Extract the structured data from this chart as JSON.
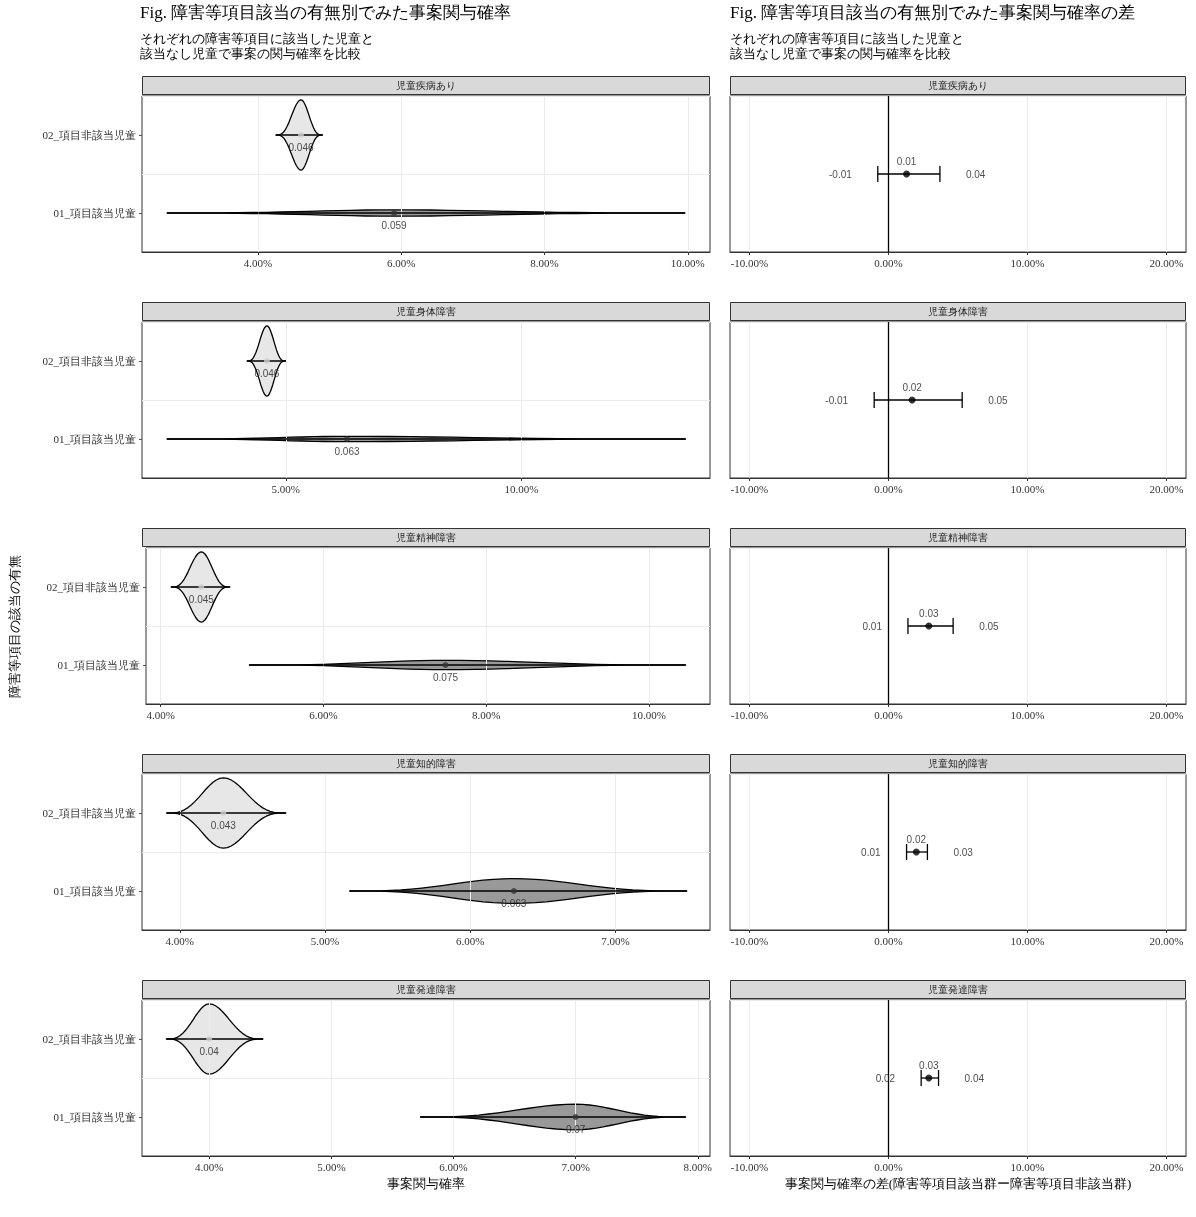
{
  "chart_data": [
    {
      "type": "scatter",
      "orientation": "horizontal",
      "title": "児童疾病あり",
      "categories": [
        "02_項目非該当児童",
        "01_項目該当児童"
      ],
      "colors": [
        "#cfcfcf",
        "#333333"
      ],
      "values": [
        0.046,
        0.059
      ],
      "errors": [
        [
          0.0425,
          0.049
        ],
        [
          0.0273,
          0.0996
        ]
      ],
      "value_labels": [
        "0.046",
        "0.059"
      ],
      "xlim": [
        0.0238,
        0.1031
      ],
      "xticks": [
        {
          "value": 0.04,
          "label": "4.00%"
        },
        {
          "value": 0.06,
          "label": "6.00%"
        },
        {
          "value": 0.08,
          "label": "8.00%"
        },
        {
          "value": 0.1,
          "label": "10.00%"
        }
      ],
      "grid": true,
      "annotations": [
        "Fig. 障害等項目該当の有無別でみた事案関与確率",
        "それぞれの障害等項目に該当した児童と",
        "該当なし児童で事案の関与確率を比較"
      ]
    },
    {
      "type": "scatter",
      "orientation": "horizontal",
      "title": "児童疾病あり",
      "categories": [
        null
      ],
      "values": [
        0.013
      ],
      "colors": [
        "#000000"
      ],
      "errors": [
        [
          -0.0077,
          0.037
        ]
      ],
      "value_labels": [
        "0.01"
      ],
      "xlim": [
        -0.114,
        0.214
      ],
      "xticks": [
        {
          "value": -0.1,
          "label": "-10.00%"
        },
        {
          "value": 0,
          "label": "0.00%"
        },
        {
          "value": 0.1,
          "label": "10.00%"
        },
        {
          "value": 0.2,
          "label": "20.00%"
        }
      ],
      "grid": true,
      "tick_labels": "x",
      "ref_lines": [
        {
          "axis": "x",
          "value": 0,
          "color": "#000000"
        }
      ],
      "annotations": [
        "Fig. 障害等項目該当の有無別でみた事案関与確率の差",
        "それぞれの障害等項目に該当した児童と",
        "該当なし児童で事案の関与確率を比較",
        {
          "text": "-0.01",
          "x": -0.0077
        },
        {
          "text": "0.04",
          "x": 0.037
        }
      ]
    },
    {
      "type": "scatter",
      "orientation": "horizontal",
      "title": "児童身体障害",
      "categories": [
        "02_項目非該当児童",
        "01_項目該当児童"
      ],
      "colors": [
        "#cfcfcf",
        "#333333"
      ],
      "values": [
        0.046,
        0.063
      ],
      "errors": [
        [
          0.0418,
          0.05
        ],
        [
          0.0248,
          0.1348
        ]
      ],
      "value_labels": [
        "0.046",
        "0.063"
      ],
      "xlim": [
        0.0195,
        0.14
      ],
      "xticks": [
        {
          "value": 0.05,
          "label": "5.00%"
        },
        {
          "value": 0.1,
          "label": "10.00%"
        }
      ],
      "grid": true
    },
    {
      "type": "scatter",
      "orientation": "horizontal",
      "title": "児童身体障害",
      "categories": [
        null
      ],
      "values": [
        0.017
      ],
      "colors": [
        "#000000"
      ],
      "errors": [
        [
          -0.0103,
          0.053
        ]
      ],
      "value_labels": [
        "0.02"
      ],
      "xlim": [
        -0.114,
        0.214
      ],
      "xticks": [
        {
          "value": -0.1,
          "label": "-10.00%"
        },
        {
          "value": 0,
          "label": "0.00%"
        },
        {
          "value": 0.1,
          "label": "10.00%"
        },
        {
          "value": 0.2,
          "label": "20.00%"
        }
      ],
      "grid": true,
      "tick_labels": "x",
      "ref_lines": [
        {
          "axis": "x",
          "value": 0,
          "color": "#000000"
        }
      ],
      "annotations": [
        {
          "text": "-0.01",
          "x": -0.0103
        },
        {
          "text": "0.05",
          "x": 0.053
        }
      ]
    },
    {
      "type": "scatter",
      "orientation": "horizontal",
      "title": "児童精神障害",
      "ylabel": "障害等項目の該当の有無",
      "categories": [
        "02_項目非該当児童",
        "01_項目該当児童"
      ],
      "colors": [
        "#cfcfcf",
        "#333333"
      ],
      "values": [
        0.045,
        0.075
      ],
      "errors": [
        [
          0.0413,
          0.0485
        ],
        [
          0.0509,
          0.1045
        ]
      ],
      "value_labels": [
        "0.045",
        "0.075"
      ],
      "xlim": [
        0.0382,
        0.1075
      ],
      "xticks": [
        {
          "value": 0.04,
          "label": "4.00%"
        },
        {
          "value": 0.06,
          "label": "6.00%"
        },
        {
          "value": 0.08,
          "label": "8.00%"
        },
        {
          "value": 0.1,
          "label": "10.00%"
        }
      ],
      "grid": true
    },
    {
      "type": "scatter",
      "orientation": "horizontal",
      "title": "児童精神障害",
      "categories": [
        null
      ],
      "values": [
        0.029
      ],
      "colors": [
        "#000000"
      ],
      "errors": [
        [
          0.014,
          0.0465
        ]
      ],
      "value_labels": [
        "0.03"
      ],
      "xlim": [
        -0.114,
        0.214
      ],
      "xticks": [
        {
          "value": -0.1,
          "label": "-10.00%"
        },
        {
          "value": 0,
          "label": "0.00%"
        },
        {
          "value": 0.1,
          "label": "10.00%"
        },
        {
          "value": 0.2,
          "label": "20.00%"
        }
      ],
      "grid": true,
      "tick_labels": "x",
      "ref_lines": [
        {
          "axis": "x",
          "value": 0,
          "color": "#000000"
        }
      ],
      "annotations": [
        {
          "text": "0.01",
          "x": 0.014
        },
        {
          "text": "0.05",
          "x": 0.0465
        }
      ]
    },
    {
      "type": "scatter",
      "orientation": "horizontal",
      "title": "児童知的障害",
      "categories": [
        "02_項目非該当児童",
        "01_項目該当児童"
      ],
      "colors": [
        "#cfcfcf",
        "#333333"
      ],
      "values": [
        0.043,
        0.063
      ],
      "errors": [
        [
          0.0391,
          0.0473
        ],
        [
          0.0517,
          0.0749
        ]
      ],
      "value_labels": [
        "0.043",
        "0.063"
      ],
      "xlim": [
        0.0374,
        0.0765
      ],
      "xticks": [
        {
          "value": 0.04,
          "label": "4.00%"
        },
        {
          "value": 0.05,
          "label": "5.00%"
        },
        {
          "value": 0.06,
          "label": "6.00%"
        },
        {
          "value": 0.07,
          "label": "7.00%"
        }
      ],
      "grid": true
    },
    {
      "type": "scatter",
      "orientation": "horizontal",
      "title": "児童知的障害",
      "categories": [
        null
      ],
      "values": [
        0.02
      ],
      "colors": [
        "#000000"
      ],
      "errors": [
        [
          0.013,
          0.028
        ]
      ],
      "value_labels": [
        "0.02"
      ],
      "xlim": [
        -0.114,
        0.214
      ],
      "xticks": [
        {
          "value": -0.1,
          "label": "-10.00%"
        },
        {
          "value": 0,
          "label": "0.00%"
        },
        {
          "value": 0.1,
          "label": "10.00%"
        },
        {
          "value": 0.2,
          "label": "20.00%"
        }
      ],
      "grid": true,
      "tick_labels": "x",
      "ref_lines": [
        {
          "axis": "x",
          "value": 0,
          "color": "#000000"
        }
      ],
      "annotations": [
        {
          "text": "0.01",
          "x": 0.013
        },
        {
          "text": "0.03",
          "x": 0.028
        }
      ]
    },
    {
      "type": "scatter",
      "orientation": "horizontal",
      "title": "児童発達障害",
      "xlabel": "事案関与確率",
      "categories": [
        "02_項目非該当児童",
        "01_項目該当児童"
      ],
      "colors": [
        "#cfcfcf",
        "#333333"
      ],
      "values": [
        0.04,
        0.07
      ],
      "errors": [
        [
          0.0365,
          0.0444
        ],
        [
          0.0573,
          0.079
        ]
      ],
      "value_labels": [
        "0.04",
        "0.07"
      ],
      "xlim": [
        0.0345,
        0.081
      ],
      "xticks": [
        {
          "value": 0.04,
          "label": "4.00%"
        },
        {
          "value": 0.05,
          "label": "5.00%"
        },
        {
          "value": 0.06,
          "label": "6.00%"
        },
        {
          "value": 0.07,
          "label": "7.00%"
        },
        {
          "value": 0.08,
          "label": "8.00%"
        }
      ],
      "grid": true
    },
    {
      "type": "scatter",
      "orientation": "horizontal",
      "title": "児童発達障害",
      "xlabel": "事案関与確率の差(障害等項目該当群ー障害等項目非該当群)",
      "categories": [
        null
      ],
      "values": [
        0.029
      ],
      "colors": [
        "#000000"
      ],
      "errors": [
        [
          0.0235,
          0.036
        ]
      ],
      "value_labels": [
        "0.03"
      ],
      "xlim": [
        -0.114,
        0.214
      ],
      "xticks": [
        {
          "value": -0.1,
          "label": "-10.00%"
        },
        {
          "value": 0,
          "label": "0.00%"
        },
        {
          "value": 0.1,
          "label": "10.00%"
        },
        {
          "value": 0.2,
          "label": "20.00%"
        }
      ],
      "grid": true,
      "tick_labels": "x",
      "ref_lines": [
        {
          "axis": "x",
          "value": 0,
          "color": "#000000"
        }
      ],
      "annotations": [
        {
          "text": "0.02",
          "x": 0.0235
        },
        {
          "text": "0.04",
          "x": 0.036
        }
      ]
    }
  ]
}
